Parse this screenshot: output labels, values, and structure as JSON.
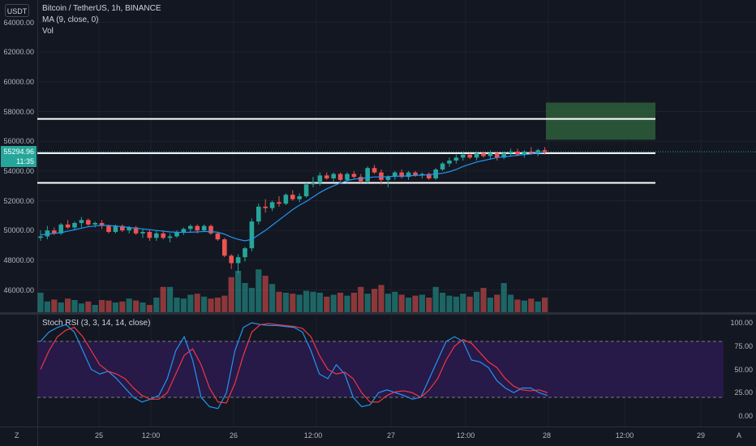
{
  "toolbar": {
    "currency": "USDT"
  },
  "legend": {
    "symbol": "Bitcoin / TetherUS, 1h, BINANCE",
    "ma": "MA (9, close, 0)",
    "vol": "Vol"
  },
  "price_axis": {
    "ticks": [
      "64000.00",
      "62000.00",
      "60000.00",
      "58000.00",
      "56000.00",
      "54000.00",
      "52000.00",
      "50000.00",
      "48000.00",
      "46000.00"
    ],
    "current_price": "55294.96",
    "countdown": "11:35"
  },
  "rsi": {
    "label": "Stoch RSI (3, 3, 14, 14, close)",
    "ticks": [
      "100.00",
      "75.00",
      "50.00",
      "25.00",
      "0.00"
    ]
  },
  "time_axis": {
    "ticks": [
      "25",
      "12:00",
      "26",
      "12:00",
      "27",
      "12:00",
      "28",
      "12:00",
      "29"
    ]
  },
  "buttons": {
    "z": "Z",
    "a": "A"
  },
  "colors": {
    "up": "#26a69a",
    "down": "#ef5350",
    "ma_line": "#2196f3",
    "target_box": "#2e5e3a",
    "rsi_band": "#2a1a4d"
  },
  "chart_data": {
    "type": "candlestick",
    "symbol": "Bitcoin / TetherUS",
    "interval": "1h",
    "ylim": [
      44500,
      65500
    ],
    "horizontal_levels": [
      57500,
      55200,
      53200
    ],
    "target_zone": [
      56100,
      58600
    ],
    "candles": [
      [
        49500,
        50000,
        49300,
        49600
      ],
      [
        49600,
        50300,
        49400,
        50000
      ],
      [
        50000,
        50200,
        49700,
        49800
      ],
      [
        49800,
        50500,
        49700,
        50400
      ],
      [
        50400,
        50700,
        50100,
        50200
      ],
      [
        50200,
        50600,
        50000,
        50500
      ],
      [
        50500,
        50900,
        50200,
        50700
      ],
      [
        50700,
        50800,
        50300,
        50400
      ],
      [
        50400,
        50600,
        50200,
        50500
      ],
      [
        50500,
        50700,
        50100,
        50300
      ],
      [
        50300,
        50400,
        49800,
        49900
      ],
      [
        49900,
        50400,
        49800,
        50300
      ],
      [
        50300,
        50400,
        49900,
        50000
      ],
      [
        50000,
        50300,
        49800,
        50200
      ],
      [
        50200,
        50300,
        49700,
        49800
      ],
      [
        49800,
        50100,
        49500,
        49900
      ],
      [
        49900,
        50000,
        49300,
        49500
      ],
      [
        49500,
        50000,
        49300,
        49800
      ],
      [
        49800,
        50000,
        49400,
        49500
      ],
      [
        49500,
        49800,
        49200,
        49600
      ],
      [
        49600,
        50000,
        49500,
        49900
      ],
      [
        49900,
        50200,
        49700,
        50100
      ],
      [
        50100,
        50400,
        49900,
        50300
      ],
      [
        50300,
        50400,
        49800,
        50000
      ],
      [
        50000,
        50400,
        49900,
        50300
      ],
      [
        50300,
        50400,
        49700,
        49800
      ],
      [
        49800,
        49900,
        49300,
        49400
      ],
      [
        49400,
        49500,
        48200,
        48300
      ],
      [
        48300,
        48400,
        47400,
        47800
      ],
      [
        47800,
        48400,
        47100,
        48200
      ],
      [
        48200,
        48900,
        47900,
        48800
      ],
      [
        48800,
        50800,
        48600,
        50600
      ],
      [
        50600,
        51800,
        50400,
        51600
      ],
      [
        51600,
        52100,
        51200,
        51500
      ],
      [
        51500,
        52000,
        51300,
        51900
      ],
      [
        51900,
        52300,
        51600,
        51800
      ],
      [
        51800,
        52500,
        51700,
        52400
      ],
      [
        52400,
        52700,
        52000,
        52100
      ],
      [
        52100,
        52500,
        51900,
        52300
      ],
      [
        52300,
        53200,
        52200,
        53100
      ],
      [
        53100,
        53600,
        52900,
        53200
      ],
      [
        53200,
        53900,
        53000,
        53700
      ],
      [
        53700,
        53900,
        53400,
        53500
      ],
      [
        53500,
        53900,
        53300,
        53800
      ],
      [
        53800,
        53900,
        53300,
        53400
      ],
      [
        53400,
        53900,
        53200,
        53800
      ],
      [
        53800,
        54000,
        53500,
        53600
      ],
      [
        53600,
        53800,
        53200,
        53300
      ],
      [
        53300,
        54300,
        53200,
        54200
      ],
      [
        54200,
        54400,
        53800,
        53900
      ],
      [
        53900,
        54100,
        53100,
        53400
      ],
      [
        53400,
        53700,
        52900,
        53600
      ],
      [
        53600,
        54000,
        53400,
        53900
      ],
      [
        53900,
        54100,
        53500,
        53600
      ],
      [
        53600,
        54000,
        53400,
        53900
      ],
      [
        53900,
        54000,
        53600,
        53700
      ],
      [
        53700,
        53900,
        53500,
        53800
      ],
      [
        53800,
        53900,
        53400,
        53500
      ],
      [
        53500,
        54200,
        53400,
        54100
      ],
      [
        54100,
        54600,
        54000,
        54500
      ],
      [
        54500,
        54900,
        54300,
        54700
      ],
      [
        54700,
        55100,
        54500,
        54900
      ],
      [
        54900,
        55300,
        54700,
        55100
      ],
      [
        55100,
        55200,
        54800,
        54900
      ],
      [
        54900,
        55300,
        54700,
        55200
      ],
      [
        55200,
        55300,
        54900,
        55000
      ],
      [
        55000,
        55400,
        54800,
        55200
      ],
      [
        55200,
        55300,
        54700,
        54900
      ],
      [
        54900,
        55300,
        54800,
        55200
      ],
      [
        55200,
        55500,
        55000,
        55300
      ],
      [
        55300,
        55500,
        55000,
        55100
      ],
      [
        55100,
        55400,
        54900,
        55300
      ],
      [
        55300,
        55600,
        55100,
        55200
      ],
      [
        55200,
        55500,
        55000,
        55400
      ],
      [
        55400,
        55600,
        55100,
        55295
      ]
    ],
    "ma9": [
      49700,
      49750,
      49800,
      49850,
      49950,
      50050,
      50150,
      50250,
      50300,
      50350,
      50330,
      50300,
      50250,
      50200,
      50150,
      50100,
      50050,
      50000,
      49950,
      49900,
      49880,
      49870,
      49880,
      49900,
      49930,
      49920,
      49880,
      49750,
      49550,
      49400,
      49300,
      49400,
      49700,
      50000,
      50350,
      50700,
      51050,
      51400,
      51700,
      51950,
      52250,
      52550,
      52800,
      53000,
      53200,
      53350,
      53450,
      53500,
      53550,
      53600,
      53600,
      53620,
      53650,
      53650,
      53670,
      53700,
      53720,
      53750,
      53800,
      53850,
      53950,
      54100,
      54300,
      54450,
      54600,
      54700,
      54800,
      54900,
      54950,
      55000,
      55050,
      55100,
      55150,
      55200,
      55250
    ],
    "volume": [
      40,
      22,
      26,
      20,
      28,
      25,
      18,
      22,
      15,
      25,
      24,
      20,
      22,
      28,
      24,
      20,
      15,
      30,
      52,
      52,
      30,
      28,
      36,
      38,
      32,
      28,
      30,
      34,
      72,
      85,
      60,
      50,
      88,
      75,
      58,
      42,
      40,
      38,
      36,
      44,
      42,
      40,
      32,
      36,
      40,
      34,
      40,
      52,
      38,
      48,
      56,
      38,
      42,
      36,
      30,
      34,
      36,
      30,
      52,
      40,
      34,
      32,
      38,
      32,
      42,
      50,
      30,
      36,
      60,
      36,
      26,
      24,
      28,
      22,
      30
    ],
    "stoch_rsi_k": [
      80,
      90,
      95,
      98,
      90,
      70,
      50,
      45,
      48,
      40,
      30,
      20,
      15,
      18,
      22,
      40,
      70,
      85,
      60,
      20,
      10,
      8,
      25,
      70,
      95,
      100,
      98,
      97,
      97,
      96,
      95,
      90,
      70,
      45,
      40,
      55,
      45,
      20,
      10,
      12,
      25,
      28,
      25,
      22,
      18,
      20,
      40,
      60,
      80,
      85,
      80,
      60,
      58,
      52,
      38,
      30,
      25,
      30,
      30,
      25,
      22
    ],
    "stoch_rsi_d": [
      50,
      70,
      85,
      92,
      95,
      85,
      70,
      55,
      48,
      45,
      40,
      30,
      22,
      18,
      18,
      25,
      45,
      65,
      72,
      55,
      30,
      15,
      14,
      35,
      65,
      90,
      98,
      99,
      98,
      97,
      96,
      94,
      85,
      65,
      50,
      45,
      47,
      40,
      25,
      15,
      15,
      22,
      26,
      27,
      25,
      20,
      28,
      40,
      60,
      75,
      82,
      78,
      68,
      58,
      52,
      40,
      32,
      28,
      27,
      28,
      25
    ],
    "stoch_levels": [
      80,
      20
    ]
  }
}
